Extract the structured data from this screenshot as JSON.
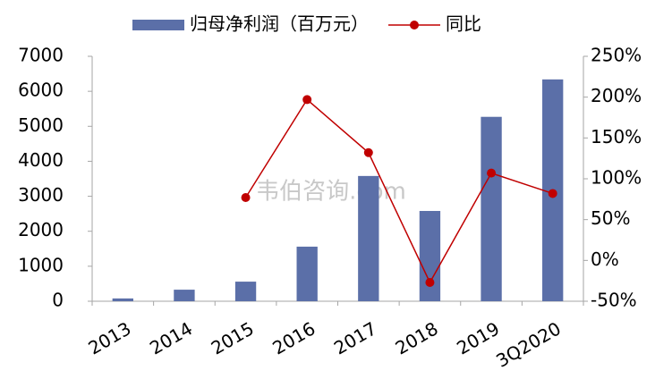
{
  "chart_data": {
    "type": "bar-line",
    "categories": [
      "2013",
      "2014",
      "2015",
      "2016",
      "2017",
      "2018",
      "2019",
      "3Q2020"
    ],
    "series": [
      {
        "name": "归母净利润（百万元）",
        "type": "bar",
        "color": "#5b6fa8",
        "values": [
          80,
          330,
          560,
          1560,
          3580,
          2580,
          5270,
          6340
        ]
      },
      {
        "name": "同比",
        "type": "line",
        "color": "#c00000",
        "axis": "y2",
        "values": [
          null,
          null,
          77,
          197,
          132,
          -27,
          107,
          82
        ]
      }
    ],
    "ylim": [
      0,
      7000
    ],
    "yticks": [
      0,
      1000,
      2000,
      3000,
      4000,
      5000,
      6000,
      7000
    ],
    "y2lim": [
      -50,
      250
    ],
    "y2ticks": [
      {
        "value": -50,
        "label": "-50%"
      },
      {
        "value": 0,
        "label": "0%"
      },
      {
        "value": 50,
        "label": "50%"
      },
      {
        "value": 100,
        "label": "100%"
      },
      {
        "value": 150,
        "label": "150%"
      },
      {
        "value": 200,
        "label": "200%"
      },
      {
        "value": 250,
        "label": "250%"
      }
    ],
    "grid": false,
    "legend": "top",
    "watermark": "韦伯咨询.com"
  }
}
